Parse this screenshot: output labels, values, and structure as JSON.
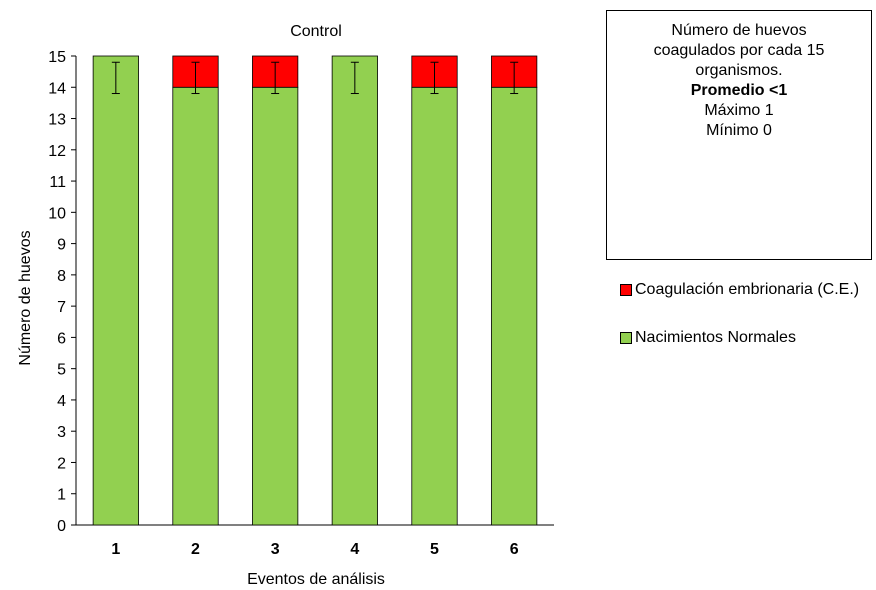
{
  "colors": {
    "normal": "#92D050",
    "coagulation": "#FF0000",
    "stroke": "#000000"
  },
  "chart_data": {
    "type": "bar",
    "stacked": true,
    "title": "Control",
    "xlabel": "Eventos de análisis",
    "ylabel": "Número de huevos",
    "categories": [
      "1",
      "2",
      "3",
      "4",
      "5",
      "6"
    ],
    "ylim": [
      0,
      15
    ],
    "yticks": [
      "0",
      "1",
      "2",
      "3",
      "4",
      "5",
      "6",
      "7",
      "8",
      "9",
      "10",
      "11",
      "12",
      "13",
      "14",
      "15"
    ],
    "grid": false,
    "legend_position": "right",
    "series": [
      {
        "name": "Nacimientos Normales",
        "color": "#92D050",
        "values": [
          15,
          14,
          14,
          15,
          14,
          14
        ]
      },
      {
        "name": "Coagulación embrionaria (C.E.)",
        "color": "#FF0000",
        "values": [
          0,
          1,
          1,
          0,
          1,
          1
        ]
      }
    ],
    "error_bars": {
      "center": 14.3,
      "low": 13.8,
      "high": 14.8
    }
  },
  "info_box": {
    "line1": "Número de huevos",
    "line2": "coagulados por cada 15",
    "line3": "organismos.",
    "line4": "Promedio <1",
    "line5": "Máximo 1",
    "line6": "Mínimo 0"
  },
  "legend": {
    "coagulation_label": "Coagulación embrionaria (C.E.)",
    "normal_label": "Nacimientos Normales"
  }
}
